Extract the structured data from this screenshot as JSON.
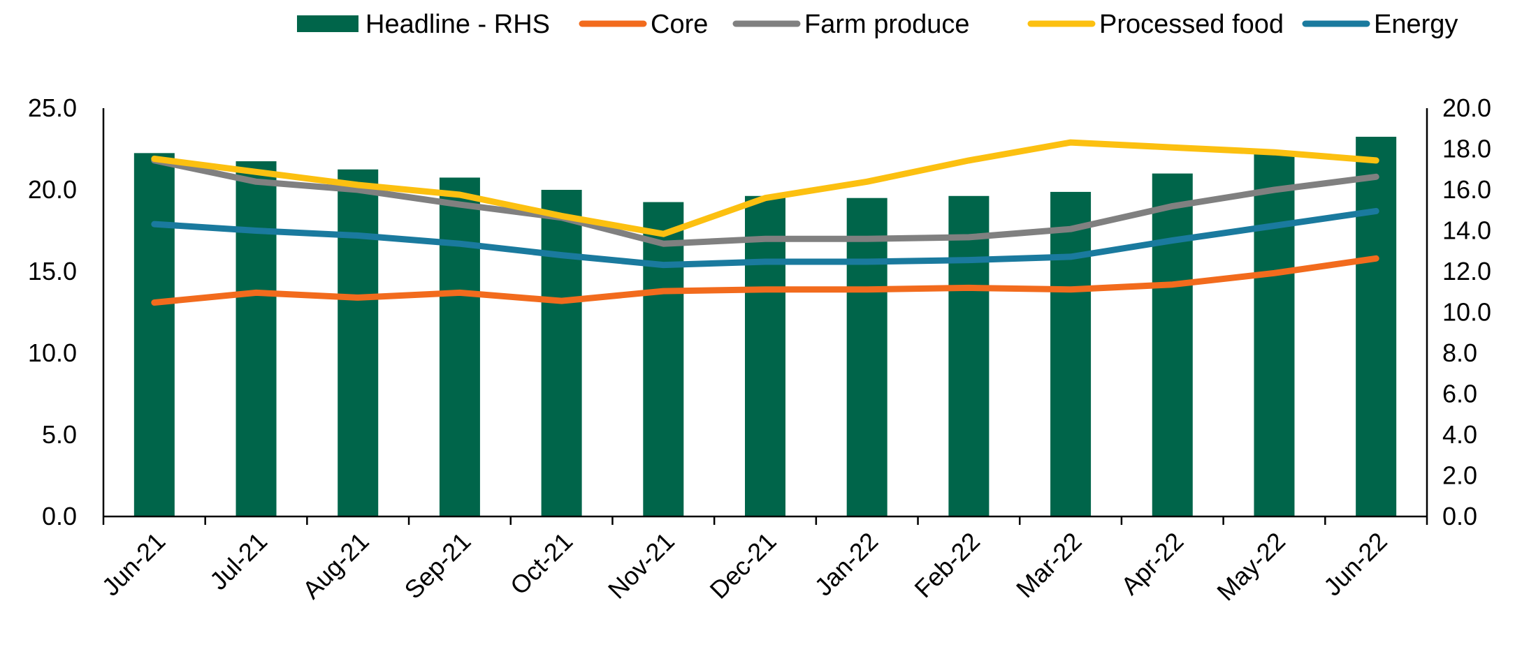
{
  "chart_data": {
    "type": "bar+line",
    "categories": [
      "Jun-21",
      "Jul-21",
      "Aug-21",
      "Sep-21",
      "Oct-21",
      "Nov-21",
      "Dec-21",
      "Jan-22",
      "Feb-22",
      "Mar-22",
      "Apr-22",
      "May-22",
      "Jun-22"
    ],
    "left_axis": {
      "min": 0,
      "max": 25,
      "step": 5,
      "tick_labels": [
        "0.0",
        "5.0",
        "10.0",
        "15.0",
        "20.0",
        "25.0"
      ]
    },
    "right_axis": {
      "min": 0,
      "max": 20,
      "step": 2,
      "tick_labels": [
        "0.0",
        "2.0",
        "4.0",
        "6.0",
        "8.0",
        "10.0",
        "12.0",
        "14.0",
        "16.0",
        "18.0",
        "20.0"
      ]
    },
    "bar_series": {
      "name": "Headline - RHS",
      "axis": "right",
      "color": "#00654a",
      "values": [
        17.8,
        17.4,
        17.0,
        16.6,
        16.0,
        15.4,
        15.7,
        15.6,
        15.7,
        15.9,
        16.8,
        17.8,
        18.6
      ]
    },
    "line_series": [
      {
        "name": "Core",
        "axis": "left",
        "color": "#f26b1d",
        "values": [
          13.1,
          13.7,
          13.4,
          13.7,
          13.2,
          13.8,
          13.9,
          13.9,
          14.0,
          13.9,
          14.2,
          14.9,
          15.8
        ]
      },
      {
        "name": "Farm produce",
        "axis": "left",
        "color": "#808080",
        "values": [
          21.8,
          20.5,
          20.0,
          19.1,
          18.3,
          16.7,
          17.0,
          17.0,
          17.1,
          17.6,
          19.0,
          20.0,
          20.8
        ]
      },
      {
        "name": "Processed food",
        "axis": "left",
        "color": "#fcc010",
        "values": [
          21.9,
          21.1,
          20.3,
          19.7,
          18.4,
          17.3,
          19.5,
          20.5,
          21.8,
          22.9,
          22.6,
          22.3,
          21.8
        ]
      },
      {
        "name": "Energy",
        "axis": "left",
        "color": "#1a7a9e",
        "values": [
          17.9,
          17.5,
          17.2,
          16.7,
          16.0,
          15.4,
          15.6,
          15.6,
          15.7,
          15.9,
          16.9,
          17.8,
          18.7
        ]
      }
    ],
    "legend": {
      "position": "top",
      "entries": [
        {
          "name": "Headline - RHS",
          "kind": "bar",
          "color": "#00654a"
        },
        {
          "name": "Core",
          "kind": "line",
          "color": "#f26b1d"
        },
        {
          "name": "Farm produce",
          "kind": "line",
          "color": "#808080"
        },
        {
          "name": "Processed food",
          "kind": "line",
          "color": "#fcc010"
        },
        {
          "name": "Energy",
          "kind": "line",
          "color": "#1a7a9e"
        }
      ]
    },
    "grid": false
  }
}
